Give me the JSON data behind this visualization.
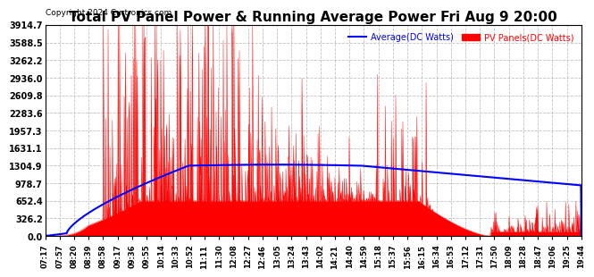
{
  "title": "Total PV Panel Power & Running Average Power Fri Aug 9 20:00",
  "copyright": "Copyright 2024 Curtronics.com",
  "legend_avg": "Average(DC Watts)",
  "legend_pv": "PV Panels(DC Watts)",
  "ylabel_values": [
    0.0,
    326.2,
    652.4,
    978.7,
    1304.9,
    1631.1,
    1957.3,
    2283.6,
    2609.8,
    2936.0,
    3262.2,
    3588.5,
    3914.7
  ],
  "ymax": 3914.7,
  "ymin": 0.0,
  "bg_color": "#ffffff",
  "grid_color": "#bbbbbb",
  "pv_color": "#ff0000",
  "avg_color": "#0000ff",
  "title_color": "#000000",
  "copyright_color": "#000000",
  "x_tick_labels": [
    "07:17",
    "07:57",
    "08:20",
    "08:39",
    "08:58",
    "09:17",
    "09:36",
    "09:55",
    "10:14",
    "10:33",
    "10:52",
    "11:11",
    "11:30",
    "12:08",
    "12:27",
    "12:46",
    "13:05",
    "13:24",
    "13:43",
    "14:02",
    "14:21",
    "14:40",
    "14:59",
    "15:18",
    "15:37",
    "15:56",
    "16:15",
    "16:34",
    "16:53",
    "17:12",
    "17:31",
    "17:50",
    "18:09",
    "18:28",
    "18:47",
    "19:06",
    "19:25",
    "19:44"
  ]
}
